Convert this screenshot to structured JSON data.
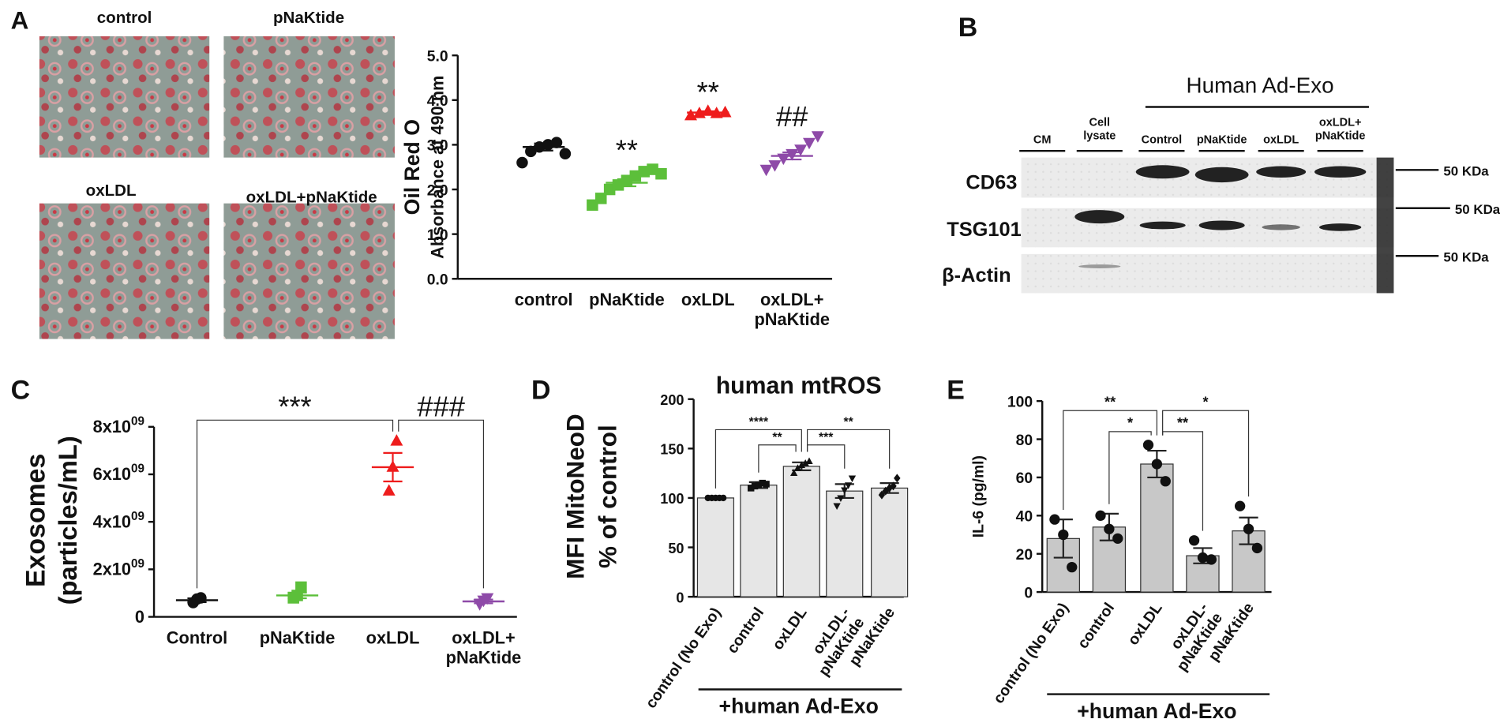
{
  "micrographs": {
    "panel": "A",
    "labels": [
      "control",
      "pNaKtide",
      "oxLDL",
      "oxLDL+pNaKtide"
    ]
  },
  "blot": {
    "panel": "B",
    "group_label": "Human Ad-Exo",
    "lanes": [
      "CM",
      "Cell\nlysate",
      "Control",
      "pNaKtide",
      "oxLDL",
      "oxLDL+\npNaKtide"
    ],
    "rows": [
      "CD63",
      "TSG101",
      "β-Actin"
    ],
    "markers": [
      "50 KDa",
      "50 KDa",
      "50 KDa"
    ]
  },
  "chart_data": [
    {
      "type": "scatter",
      "ylabel": [
        "Oil Red O",
        "Absorbance at 490 nm"
      ],
      "categories": [
        "control",
        "pNaKtide",
        "oxLDL",
        "oxLDL+\npNaKtide"
      ],
      "points": [
        [
          2.6,
          2.85,
          2.95,
          3.0,
          3.05,
          2.8
        ],
        [
          1.65,
          1.8,
          2.0,
          2.1,
          2.2,
          2.3,
          2.4,
          2.45,
          2.35
        ],
        [
          3.65,
          3.7,
          3.75,
          3.7,
          3.72
        ],
        [
          2.45,
          2.55,
          2.7,
          2.8,
          2.9,
          3.05,
          3.2
        ]
      ],
      "means": [
        2.95,
        2.15,
        3.72,
        2.75
      ],
      "errors": [
        0.08,
        0.08,
        0.03,
        0.08
      ],
      "colors": [
        "#111111",
        "#5cbf3a",
        "#ee1c1c",
        "#8e4aa8"
      ],
      "markers": [
        "circle",
        "square",
        "triangle",
        "triangle-down"
      ],
      "stars": [
        null,
        "**",
        "**",
        "##"
      ],
      "ylim": [
        0,
        5
      ],
      "yticks": [
        {
          "value": 0,
          "label": "0.0"
        },
        {
          "value": 1,
          "label": "1.0"
        },
        {
          "value": 2,
          "label": "2.0"
        },
        {
          "value": 3,
          "label": "3.0"
        },
        {
          "value": 4,
          "label": "4.0"
        },
        {
          "value": 5,
          "label": "5.0"
        }
      ]
    },
    {
      "type": "scatter",
      "panel": "C",
      "ylabel": [
        "Exosomes",
        "(particles/mL)"
      ],
      "categories": [
        "Control",
        "pNaKtide",
        "oxLDL",
        "oxLDL+\npNaKtide"
      ],
      "points": [
        [
          600000000,
          750000000,
          800000000
        ],
        [
          800000000,
          900000000,
          1250000000
        ],
        [
          5300000000,
          6300000000,
          7400000000
        ],
        [
          550000000,
          700000000,
          800000000
        ]
      ],
      "means": [
        700000000,
        900000000,
        6300000000,
        650000000
      ],
      "errors": [
        80000000,
        120000000,
        600000000,
        80000000
      ],
      "colors": [
        "#111111",
        "#5cbf3a",
        "#ee1c1c",
        "#8e4aa8"
      ],
      "markers": [
        "circle",
        "square",
        "triangle",
        "triangle-down"
      ],
      "comparisons": [
        {
          "pair": [
            0,
            2
          ],
          "label": "***"
        },
        {
          "pair": [
            2,
            3
          ],
          "label": "###"
        }
      ],
      "ylim": [
        0,
        8000000000
      ],
      "yticks": [
        0,
        {
          "value": 2000000000,
          "label": "2x10",
          "label_sup": "09"
        },
        {
          "value": 4000000000,
          "label": "4x10",
          "label_sup": "09"
        },
        {
          "value": 6000000000,
          "label": "6x10",
          "label_sup": "09"
        },
        {
          "value": 8000000000,
          "label": "8x10",
          "label_sup": "09"
        }
      ]
    },
    {
      "type": "bar",
      "panel": "D",
      "title": "human mtROS",
      "ylabel": [
        "MFI MitoNeoD",
        "% of control"
      ],
      "categories": [
        "control (No Exo)",
        "control",
        "oxLDL",
        "oxLDL-\npNaKtide",
        "pNaKtide"
      ],
      "values": [
        100,
        113,
        132,
        107,
        110
      ],
      "errors": [
        0,
        3,
        4,
        7,
        5
      ],
      "points": [
        [
          100,
          100,
          100,
          100,
          100
        ],
        [
          110,
          112,
          113,
          115,
          114
        ],
        [
          125,
          130,
          133,
          135,
          137
        ],
        [
          92,
          100,
          108,
          113,
          120
        ],
        [
          103,
          107,
          110,
          112,
          120
        ]
      ],
      "markers": [
        "circle",
        "square",
        "triangle",
        "triangle-down",
        "diamond"
      ],
      "color": "#e6e6e6",
      "comparisons": [
        {
          "pair": [
            0,
            2
          ],
          "label": "****"
        },
        {
          "pair": [
            1,
            2
          ],
          "label": "**"
        },
        {
          "pair": [
            2,
            3
          ],
          "label": "***"
        },
        {
          "pair": [
            2,
            4
          ],
          "label": "**"
        }
      ],
      "group_label": "+human Ad-Exo",
      "ylim": [
        0,
        200
      ],
      "yticks": [
        0,
        50,
        100,
        150,
        200
      ]
    },
    {
      "type": "bar",
      "panel": "E",
      "ylabel": [
        "IL-6 (pg/ml)"
      ],
      "categories": [
        "control (No Exo)",
        "control",
        "oxLDL",
        "oxLDL-\npNaKtide",
        "pNaKtide"
      ],
      "values": [
        28,
        34,
        67,
        19,
        32
      ],
      "errors": [
        10,
        7,
        7,
        4,
        7
      ],
      "points": [
        [
          38,
          30,
          13
        ],
        [
          40,
          33,
          28
        ],
        [
          77,
          67,
          58
        ],
        [
          27,
          18,
          17
        ],
        [
          45,
          33,
          23
        ]
      ],
      "markers": [
        "circle",
        "circle",
        "circle",
        "circle",
        "circle"
      ],
      "color": "#c8c8c8",
      "comparisons": [
        {
          "pair": [
            0,
            2
          ],
          "label": "**"
        },
        {
          "pair": [
            1,
            2
          ],
          "label": "*"
        },
        {
          "pair": [
            2,
            3
          ],
          "label": "**"
        },
        {
          "pair": [
            2,
            4
          ],
          "label": "*"
        }
      ],
      "group_label": "+human Ad-Exo",
      "ylim": [
        0,
        100
      ],
      "yticks": [
        0,
        20,
        40,
        60,
        80,
        100
      ]
    }
  ]
}
